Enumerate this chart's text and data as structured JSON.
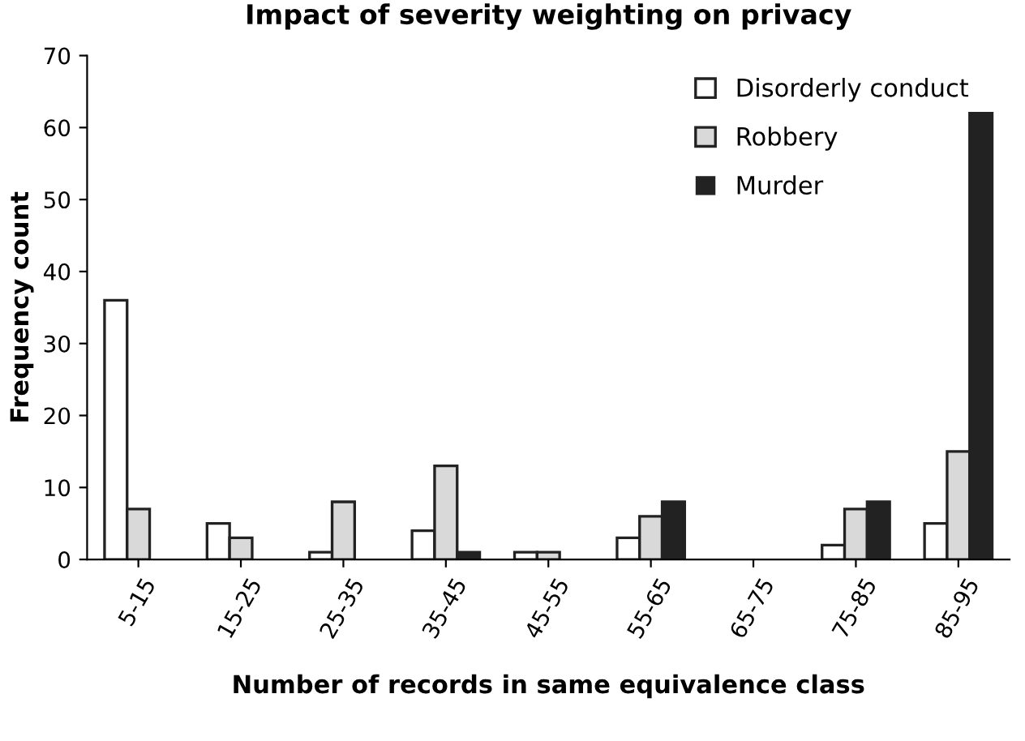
{
  "chart_data": {
    "type": "bar",
    "title": "Impact of severity weighting on privacy",
    "xlabel": "Number of records in same equivalence class",
    "ylabel": "Frequency count",
    "categories": [
      "5-15",
      "15-25",
      "25-35",
      "35-45",
      "45-55",
      "55-65",
      "65-75",
      "75-85",
      "85-95"
    ],
    "series": [
      {
        "name": "Disorderly conduct",
        "color": "#ffffff",
        "values": [
          36,
          5,
          1,
          4,
          1,
          3,
          0,
          2,
          5
        ]
      },
      {
        "name": "Robbery",
        "color": "#d9d9d9",
        "values": [
          7,
          3,
          8,
          13,
          1,
          6,
          0,
          7,
          15
        ]
      },
      {
        "name": "Murder",
        "color": "#222222",
        "values": [
          0,
          0,
          0,
          1,
          0,
          8,
          0,
          8,
          62
        ]
      }
    ],
    "ylim": [
      0,
      70
    ],
    "yticks": [
      0,
      10,
      20,
      30,
      40,
      50,
      60,
      70
    ],
    "grid": false,
    "legend": "top right"
  }
}
